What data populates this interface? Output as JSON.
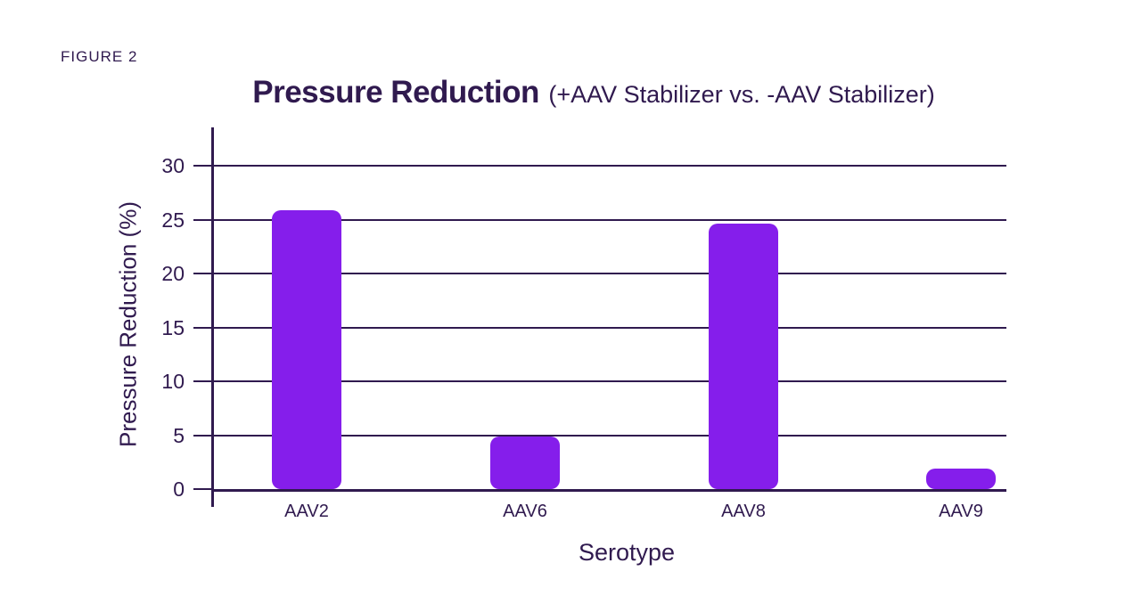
{
  "header": {
    "figure_label": "FIGURE 2"
  },
  "chart": {
    "title": "Pressure Reduction",
    "subtitle": "(+AAV Stabilizer vs. -AAV Stabilizer)",
    "xlabel": "Serotype",
    "ylabel": "Pressure Reduction (%)"
  },
  "chart_data": {
    "type": "bar",
    "title": "Pressure Reduction (+AAV Stabilizer vs. -AAV Stabilizer)",
    "categories": [
      "AAV2",
      "AAV6",
      "AAV8",
      "AAV9"
    ],
    "values": [
      25.9,
      4.9,
      24.6,
      1.9
    ],
    "xlabel": "Serotype",
    "ylabel": "Pressure Reduction (%)",
    "ylim": [
      0,
      30
    ],
    "yticks": [
      0,
      5,
      10,
      15,
      20,
      25,
      30
    ],
    "grid": true,
    "legend": false,
    "bar_color": "#851EEB",
    "axis_color": "#301A4F"
  },
  "colors": {
    "bar": "#851EEB",
    "ink": "#301A4F",
    "background": "#FFFFFF"
  }
}
